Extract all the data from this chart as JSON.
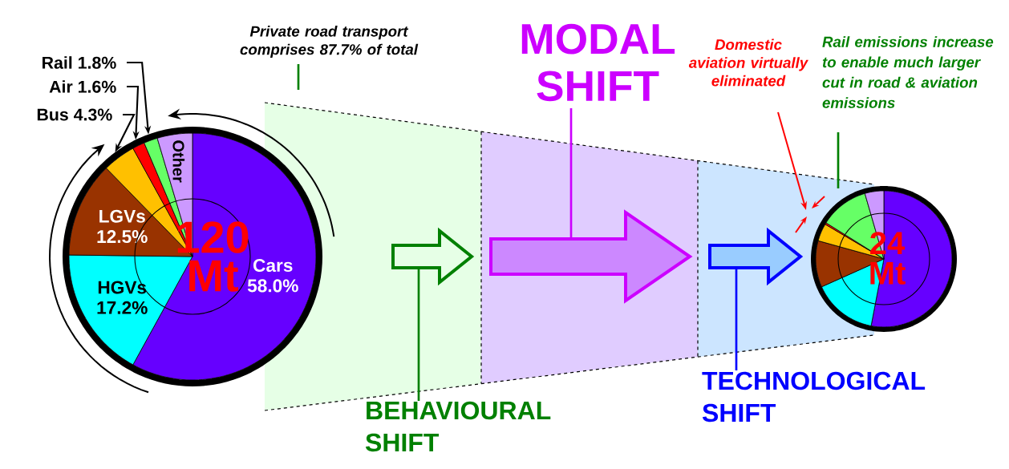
{
  "chart_data": [
    {
      "type": "pie",
      "categories": [
        "Cars",
        "HGVs",
        "LGVs",
        "Bus",
        "Air",
        "Rail",
        "Other"
      ],
      "values": [
        58.0,
        17.2,
        12.5,
        4.3,
        1.6,
        1.8,
        4.6
      ],
      "colors": [
        "#6600ff",
        "#00ffff",
        "#993300",
        "#ffc000",
        "#ff0000",
        "#66ff66",
        "#cc99ff"
      ],
      "value_labels": [
        "58.0%",
        "17.2%",
        "12.5%",
        "4.3%",
        "1.6%",
        "1.8%",
        null
      ],
      "annotations": [
        "Private road transport comprises 87.7% of total",
        "120 Mt",
        "BEHAVIOURAL SHIFT"
      ]
    },
    {
      "type": "pie",
      "categories": [
        null,
        null,
        null,
        null,
        null,
        null,
        null
      ],
      "values": [
        53.0,
        15.3,
        11.0,
        4.2,
        0.4,
        11.6,
        4.5
      ],
      "colors": [
        "#6600ff",
        "#00ffff",
        "#993300",
        "#ffc000",
        "#ff0000",
        "#66ff66",
        "#cc99ff"
      ],
      "annotations": [
        "24 Mt",
        "MODAL SHIFT",
        "TECHNOLOGICAL SHIFT",
        "Domestic aviation virtually eliminated",
        "Rail emissions increase to enable much larger cut in road & aviation emissions"
      ]
    }
  ]
}
